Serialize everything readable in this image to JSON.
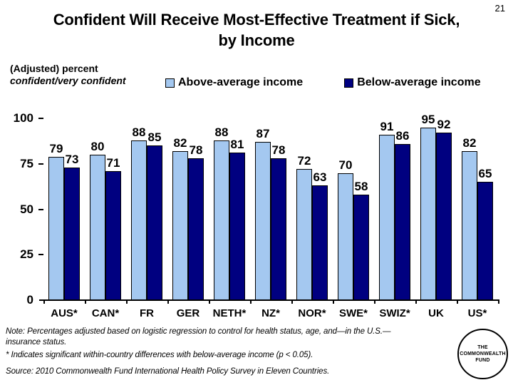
{
  "slide": {
    "page_number": "21",
    "title_line1": "Confident Will Receive Most-Effective Treatment if Sick,",
    "title_line2": "by Income"
  },
  "axis_caption": {
    "line1": "(Adjusted) percent",
    "line2": "confident/very confident"
  },
  "legend": [
    {
      "label": "Above-average income",
      "color": "#A4C8F0"
    },
    {
      "label": "Below-average income",
      "color": "#000080"
    }
  ],
  "notes": {
    "note": "Note: Percentages adjusted based on logistic regression to control for health status, age, and—in the U.S.—insurance status.",
    "significance": "* Indicates significant within-country differences with below-average income (p < 0.05).",
    "source": "Source: 2010 Commonwealth Fund International Health Policy Survey in Eleven Countries."
  },
  "logo": {
    "line1": "THE",
    "line2": "COMMONWEALTH",
    "line3": "FUND"
  },
  "chart_data": {
    "type": "bar",
    "title": "Confident Will Receive Most-Effective Treatment if Sick, by Income",
    "ylabel": "(Adjusted) percent confident/very confident",
    "xlabel": "",
    "ylim": [
      0,
      100
    ],
    "yticks": [
      0,
      25,
      50,
      75,
      100
    ],
    "grid": false,
    "legend_position": "top",
    "data_labels": true,
    "categories": [
      "AUS*",
      "CAN*",
      "FR",
      "GER",
      "NETH*",
      "NZ*",
      "NOR*",
      "SWE*",
      "SWIZ*",
      "UK",
      "US*"
    ],
    "series": [
      {
        "name": "Above-average income",
        "color": "#A4C8F0",
        "values": [
          79,
          80,
          88,
          82,
          88,
          87,
          72,
          70,
          91,
          95,
          82
        ]
      },
      {
        "name": "Below-average income",
        "color": "#000080",
        "values": [
          73,
          71,
          85,
          78,
          81,
          78,
          63,
          58,
          86,
          92,
          65
        ]
      }
    ]
  }
}
